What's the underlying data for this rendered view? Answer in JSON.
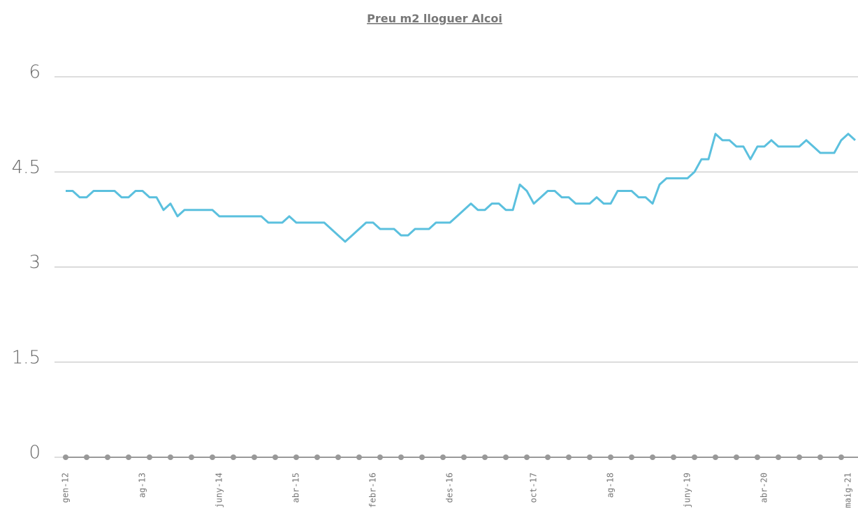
{
  "chart_data": {
    "type": "line",
    "title": "Preu m2 lloguer Alcoi",
    "categories": [
      "gen-12",
      null,
      null,
      null,
      null,
      null,
      null,
      null,
      null,
      null,
      null,
      "ag-13",
      null,
      null,
      null,
      null,
      null,
      null,
      null,
      null,
      null,
      null,
      "juny-14",
      null,
      null,
      null,
      null,
      null,
      null,
      null,
      null,
      null,
      null,
      "abr-15",
      null,
      null,
      null,
      null,
      null,
      null,
      null,
      null,
      null,
      null,
      "febr-16",
      null,
      null,
      null,
      null,
      null,
      null,
      null,
      null,
      null,
      null,
      "des-16",
      null,
      null,
      null,
      null,
      null,
      null,
      null,
      null,
      null,
      null,
      null,
      "oct-17",
      null,
      null,
      null,
      null,
      null,
      null,
      null,
      null,
      null,
      null,
      "ag-18",
      null,
      null,
      null,
      null,
      null,
      null,
      null,
      null,
      null,
      null,
      "juny-19",
      null,
      null,
      null,
      null,
      null,
      null,
      null,
      null,
      null,
      null,
      "abr-20",
      null,
      null,
      null,
      null,
      null,
      null,
      null,
      null,
      null,
      null,
      null,
      "maig-21",
      null
    ],
    "series": [
      {
        "name": "Preu m2",
        "color": "#5bc0de",
        "values": [
          4.2,
          4.2,
          4.1,
          4.1,
          4.2,
          4.2,
          4.2,
          4.2,
          4.1,
          4.1,
          4.2,
          4.2,
          4.1,
          4.1,
          3.9,
          4.0,
          3.8,
          3.9,
          3.9,
          3.9,
          3.9,
          3.9,
          3.8,
          3.8,
          3.8,
          3.8,
          3.8,
          3.8,
          3.8,
          3.7,
          3.7,
          3.7,
          3.8,
          3.7,
          3.7,
          3.7,
          3.7,
          3.7,
          3.6,
          3.5,
          3.4,
          3.5,
          3.6,
          3.7,
          3.7,
          3.6,
          3.6,
          3.6,
          3.5,
          3.5,
          3.6,
          3.6,
          3.6,
          3.7,
          3.7,
          3.7,
          3.8,
          3.9,
          4.0,
          3.9,
          3.9,
          4.0,
          4.0,
          3.9,
          3.9,
          4.3,
          4.2,
          4.0,
          4.1,
          4.2,
          4.2,
          4.1,
          4.1,
          4.0,
          4.0,
          4.0,
          4.1,
          4.0,
          4.0,
          4.2,
          4.2,
          4.2,
          4.1,
          4.1,
          4.0,
          4.3,
          4.4,
          4.4,
          4.4,
          4.4,
          4.5,
          4.7,
          4.7,
          5.1,
          5.0,
          5.0,
          4.9,
          4.9,
          4.7,
          4.9,
          4.9,
          5.0,
          4.9,
          4.9,
          4.9,
          4.9,
          5.0,
          4.9,
          4.8,
          4.8,
          4.8,
          5.0,
          5.1,
          5.0
        ]
      }
    ],
    "ylim": [
      0,
      6
    ],
    "yticks": [
      0,
      1.5,
      3,
      4.5,
      6
    ],
    "grid": true
  }
}
